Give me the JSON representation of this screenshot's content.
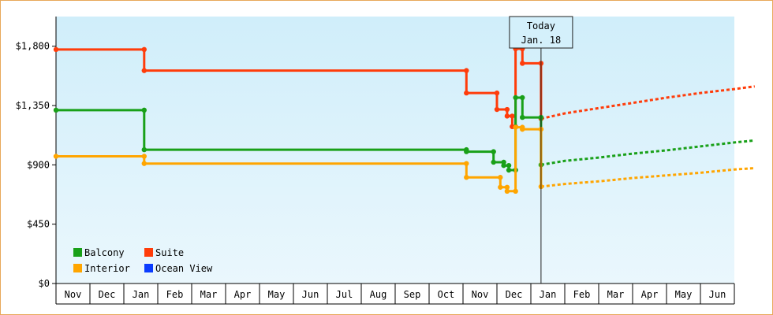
{
  "chart_data": {
    "type": "line",
    "title": "",
    "xlabel": "",
    "ylabel": "",
    "ylim": [
      0,
      2025
    ],
    "yticks": [
      {
        "value": 0,
        "label": "$0"
      },
      {
        "value": 450,
        "label": "$450"
      },
      {
        "value": 900,
        "label": "$900"
      },
      {
        "value": 1350,
        "label": "$1,350"
      },
      {
        "value": 1800,
        "label": "$1,800"
      }
    ],
    "month_labels": [
      "Nov",
      "Dec",
      "Jan",
      "Feb",
      "Mar",
      "Apr",
      "May",
      "Jun",
      "Jul",
      "Aug",
      "Sep",
      "Oct",
      "Nov",
      "Dec",
      "Jan",
      "Feb",
      "Mar",
      "Apr",
      "May",
      "Jun"
    ],
    "callout": {
      "line1": "Today",
      "line2": "Jan. 18"
    },
    "grid": false,
    "legend_position": "bottom-left",
    "colors": {
      "background_top": "#d0eefa",
      "background_bottom": "#eaf7fd",
      "frame_border": "#e8a85a",
      "balcony": "#19a019",
      "suite": "#ff3c0a",
      "interior": "#ffa500",
      "ocean_view": "#0a3cff"
    },
    "legend": [
      {
        "key": "balcony",
        "label": "Balcony"
      },
      {
        "key": "suite",
        "label": "Suite"
      },
      {
        "key": "interior",
        "label": "Interior"
      },
      {
        "key": "ocean_view",
        "label": "Ocean View"
      }
    ],
    "series": [
      {
        "key": "suite",
        "name": "Suite",
        "history": [
          {
            "m": 0.0,
            "v": 1775
          },
          {
            "m": 2.6,
            "v": 1775
          },
          {
            "m": 2.6,
            "v": 1615
          },
          {
            "m": 12.1,
            "v": 1615
          },
          {
            "m": 12.1,
            "v": 1445
          },
          {
            "m": 13.0,
            "v": 1445
          },
          {
            "m": 13.0,
            "v": 1320
          },
          {
            "m": 13.3,
            "v": 1320
          },
          {
            "m": 13.3,
            "v": 1270
          },
          {
            "m": 13.45,
            "v": 1270
          },
          {
            "m": 13.45,
            "v": 1190
          },
          {
            "m": 13.55,
            "v": 1190
          },
          {
            "m": 13.55,
            "v": 1780
          },
          {
            "m": 13.75,
            "v": 1780
          },
          {
            "m": 13.75,
            "v": 1670
          },
          {
            "m": 14.3,
            "v": 1670
          },
          {
            "m": 14.3,
            "v": 1250
          }
        ],
        "forecast": [
          {
            "m": 14.3,
            "v": 1250
          },
          {
            "m": 15.0,
            "v": 1290
          },
          {
            "m": 16.0,
            "v": 1330
          },
          {
            "m": 17.0,
            "v": 1370
          },
          {
            "m": 18.0,
            "v": 1410
          },
          {
            "m": 19.0,
            "v": 1445
          },
          {
            "m": 20.0,
            "v": 1475
          },
          {
            "m": 20.6,
            "v": 1495
          }
        ]
      },
      {
        "key": "balcony",
        "name": "Balcony",
        "history": [
          {
            "m": 0.0,
            "v": 1315
          },
          {
            "m": 2.6,
            "v": 1315
          },
          {
            "m": 2.6,
            "v": 1015
          },
          {
            "m": 12.1,
            "v": 1015
          },
          {
            "m": 12.1,
            "v": 1000
          },
          {
            "m": 12.9,
            "v": 1000
          },
          {
            "m": 12.9,
            "v": 920
          },
          {
            "m": 13.2,
            "v": 920
          },
          {
            "m": 13.2,
            "v": 895
          },
          {
            "m": 13.35,
            "v": 895
          },
          {
            "m": 13.35,
            "v": 860
          },
          {
            "m": 13.55,
            "v": 860
          },
          {
            "m": 13.55,
            "v": 1410
          },
          {
            "m": 13.75,
            "v": 1410
          },
          {
            "m": 13.75,
            "v": 1260
          },
          {
            "m": 14.3,
            "v": 1260
          },
          {
            "m": 14.3,
            "v": 900
          }
        ],
        "forecast": [
          {
            "m": 14.3,
            "v": 900
          },
          {
            "m": 15.0,
            "v": 930
          },
          {
            "m": 16.0,
            "v": 955
          },
          {
            "m": 17.0,
            "v": 985
          },
          {
            "m": 18.0,
            "v": 1010
          },
          {
            "m": 19.0,
            "v": 1040
          },
          {
            "m": 20.0,
            "v": 1070
          },
          {
            "m": 20.6,
            "v": 1085
          }
        ]
      },
      {
        "key": "interior",
        "name": "Interior",
        "history": [
          {
            "m": 0.0,
            "v": 965
          },
          {
            "m": 2.6,
            "v": 965
          },
          {
            "m": 2.6,
            "v": 910
          },
          {
            "m": 12.1,
            "v": 910
          },
          {
            "m": 12.1,
            "v": 805
          },
          {
            "m": 13.1,
            "v": 805
          },
          {
            "m": 13.1,
            "v": 730
          },
          {
            "m": 13.3,
            "v": 730
          },
          {
            "m": 13.3,
            "v": 700
          },
          {
            "m": 13.55,
            "v": 700
          },
          {
            "m": 13.55,
            "v": 1185
          },
          {
            "m": 13.75,
            "v": 1185
          },
          {
            "m": 13.75,
            "v": 1170
          },
          {
            "m": 14.3,
            "v": 1170
          },
          {
            "m": 14.3,
            "v": 735
          }
        ],
        "forecast": [
          {
            "m": 14.3,
            "v": 735
          },
          {
            "m": 15.0,
            "v": 755
          },
          {
            "m": 16.0,
            "v": 775
          },
          {
            "m": 17.0,
            "v": 800
          },
          {
            "m": 18.0,
            "v": 820
          },
          {
            "m": 19.0,
            "v": 840
          },
          {
            "m": 20.0,
            "v": 865
          },
          {
            "m": 20.6,
            "v": 875
          }
        ]
      },
      {
        "key": "ocean_view",
        "name": "Ocean View",
        "history": [],
        "forecast": []
      }
    ],
    "today_month_index": 14.3
  }
}
